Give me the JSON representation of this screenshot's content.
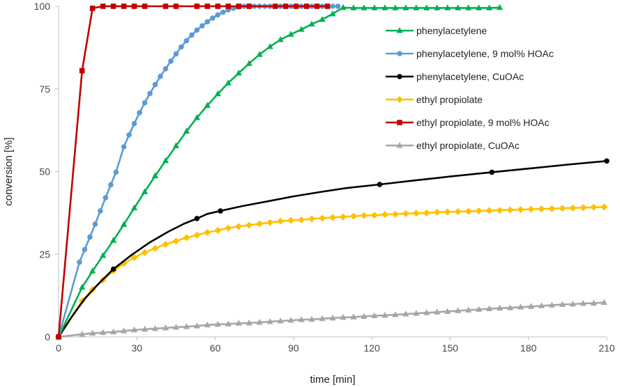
{
  "chart_data": {
    "type": "line",
    "title": "",
    "xlabel": "time [min]",
    "ylabel": "conversion [%]",
    "xlim": [
      0,
      210
    ],
    "ylim": [
      0,
      100
    ],
    "xticks": [
      0,
      30,
      60,
      90,
      120,
      150,
      180,
      210
    ],
    "yticks": [
      0,
      25,
      50,
      75,
      100
    ],
    "grid": false,
    "legend_position": "top-right",
    "series": [
      {
        "name": "phenylacetylene",
        "color": "#00B050",
        "marker": "triangle",
        "points": [
          [
            0,
            0
          ],
          [
            9,
            15
          ],
          [
            13,
            19.9
          ],
          [
            17,
            24.6
          ],
          [
            21,
            29.2
          ],
          [
            25,
            34
          ],
          [
            29,
            39
          ],
          [
            33,
            43.9
          ],
          [
            37,
            48.7
          ],
          [
            41,
            53.3
          ],
          [
            45,
            57.8
          ],
          [
            49,
            62.2
          ],
          [
            53,
            66.3
          ],
          [
            57,
            70
          ],
          [
            61,
            73.5
          ],
          [
            65,
            76.8
          ],
          [
            69,
            79.8
          ],
          [
            73,
            82.7
          ],
          [
            77,
            85.4
          ],
          [
            81,
            87.8
          ],
          [
            85,
            89.9
          ],
          [
            89,
            91.5
          ],
          [
            93,
            93
          ],
          [
            97,
            94.6
          ],
          [
            101,
            96
          ],
          [
            105,
            97.7
          ],
          [
            109,
            99.6
          ],
          [
            113,
            99.5
          ],
          [
            117,
            99.5
          ],
          [
            121,
            99.5
          ],
          [
            125,
            99.5
          ],
          [
            129,
            99.5
          ],
          [
            133,
            99.5
          ],
          [
            137,
            99.5
          ],
          [
            141,
            99.5
          ],
          [
            145,
            99.5
          ],
          [
            149,
            99.5
          ],
          [
            153,
            99.5
          ],
          [
            157,
            99.5
          ],
          [
            161,
            99.5
          ],
          [
            165,
            99.5
          ],
          [
            169,
            99.6
          ]
        ]
      },
      {
        "name": "phenylacetylene, 9 mol% HOAc",
        "color": "#5B9BD5",
        "marker": "circle",
        "points": [
          [
            0,
            0
          ],
          [
            8,
            22.6
          ],
          [
            10,
            26.4
          ],
          [
            12,
            30.2
          ],
          [
            14,
            34.1
          ],
          [
            16,
            38.1
          ],
          [
            18,
            42.1
          ],
          [
            20,
            46
          ],
          [
            22,
            49.8
          ],
          [
            25,
            57.5
          ],
          [
            27,
            61.1
          ],
          [
            29,
            64.5
          ],
          [
            31,
            67.8
          ],
          [
            33,
            70.8
          ],
          [
            35,
            73.6
          ],
          [
            37,
            76.3
          ],
          [
            39,
            78.8
          ],
          [
            41,
            81.1
          ],
          [
            43,
            83.4
          ],
          [
            45,
            85.6
          ],
          [
            47,
            87.7
          ],
          [
            49,
            89.6
          ],
          [
            51,
            91.3
          ],
          [
            53,
            92.8
          ],
          [
            55,
            94.1
          ],
          [
            57,
            95.3
          ],
          [
            59,
            96.4
          ],
          [
            61,
            97.4
          ],
          [
            63,
            98.2
          ],
          [
            65,
            98.9
          ],
          [
            67,
            99.4
          ],
          [
            69,
            99.8
          ],
          [
            71,
            100
          ],
          [
            73,
            100
          ],
          [
            75,
            100
          ],
          [
            77,
            100
          ],
          [
            79,
            100
          ],
          [
            81,
            100
          ],
          [
            83,
            100
          ],
          [
            85,
            100
          ],
          [
            87,
            100
          ],
          [
            89,
            100
          ],
          [
            91,
            100
          ],
          [
            93,
            100
          ],
          [
            95,
            100
          ],
          [
            97,
            100
          ],
          [
            99,
            100
          ],
          [
            101,
            100
          ],
          [
            103,
            100
          ],
          [
            105,
            100
          ],
          [
            107,
            100
          ]
        ]
      },
      {
        "name": "phenylacetylene, CuOAc",
        "color": "#000000",
        "marker": "circle",
        "points": [
          [
            0,
            0
          ],
          [
            21,
            20.5
          ],
          [
            53,
            35.8
          ],
          [
            62,
            38.1
          ],
          [
            123,
            46.1
          ],
          [
            166,
            49.8
          ],
          [
            210,
            53.2
          ]
        ],
        "curve": [
          [
            0,
            0
          ],
          [
            5,
            6
          ],
          [
            10,
            11.5
          ],
          [
            15,
            15.8
          ],
          [
            21,
            20.5
          ],
          [
            28,
            24.8
          ],
          [
            35,
            28.6
          ],
          [
            42,
            31.8
          ],
          [
            48,
            34.2
          ],
          [
            53,
            35.8
          ],
          [
            57,
            37.2
          ],
          [
            62,
            38.1
          ],
          [
            70,
            39.5
          ],
          [
            80,
            41
          ],
          [
            90,
            42.5
          ],
          [
            100,
            43.8
          ],
          [
            110,
            45
          ],
          [
            123,
            46.1
          ],
          [
            135,
            47.2
          ],
          [
            150,
            48.5
          ],
          [
            166,
            49.8
          ],
          [
            180,
            50.9
          ],
          [
            195,
            52.1
          ],
          [
            210,
            53.2
          ]
        ]
      },
      {
        "name": "ethyl propiolate",
        "color": "#FFC000",
        "marker": "diamond",
        "points": [
          [
            0,
            0
          ],
          [
            9,
            10.9
          ],
          [
            13,
            14.3
          ],
          [
            17,
            17.2
          ],
          [
            21,
            20
          ],
          [
            25,
            22.2
          ],
          [
            29,
            24
          ],
          [
            33,
            25.5
          ],
          [
            37,
            26.8
          ],
          [
            41,
            28
          ],
          [
            45,
            29
          ],
          [
            49,
            30
          ],
          [
            53,
            30.8
          ],
          [
            57,
            31.6
          ],
          [
            61,
            32.2
          ],
          [
            65,
            32.9
          ],
          [
            69,
            33.4
          ],
          [
            73,
            33.8
          ],
          [
            77,
            34.2
          ],
          [
            81,
            34.6
          ],
          [
            85,
            35
          ],
          [
            89,
            35.2
          ],
          [
            93,
            35.4
          ],
          [
            97,
            35.7
          ],
          [
            101,
            35.9
          ],
          [
            105,
            36.1
          ],
          [
            109,
            36.3
          ],
          [
            113,
            36.5
          ],
          [
            117,
            36.7
          ],
          [
            121,
            36.8
          ],
          [
            125,
            37
          ],
          [
            129,
            37.1
          ],
          [
            133,
            37.3
          ],
          [
            137,
            37.4
          ],
          [
            141,
            37.5
          ],
          [
            145,
            37.7
          ],
          [
            149,
            37.8
          ],
          [
            153,
            37.9
          ],
          [
            157,
            38
          ],
          [
            161,
            38.1
          ],
          [
            165,
            38.2
          ],
          [
            169,
            38.3
          ],
          [
            173,
            38.4
          ],
          [
            177,
            38.5
          ],
          [
            181,
            38.6
          ],
          [
            185,
            38.7
          ],
          [
            189,
            38.8
          ],
          [
            193,
            38.9
          ],
          [
            197,
            39
          ],
          [
            201,
            39.1
          ],
          [
            205,
            39.2
          ],
          [
            209,
            39.3
          ]
        ]
      },
      {
        "name": "ethyl propiolate, 9 mol% HOAc",
        "color": "#C00000",
        "marker": "square",
        "points": [
          [
            0,
            0
          ],
          [
            9,
            80.5
          ],
          [
            13,
            99.4
          ],
          [
            17,
            100
          ],
          [
            21,
            100
          ],
          [
            25,
            100
          ],
          [
            29,
            100
          ],
          [
            33,
            100
          ],
          [
            41,
            100
          ],
          [
            45,
            100
          ],
          [
            53,
            100
          ],
          [
            57,
            100
          ],
          [
            61,
            100
          ],
          [
            65,
            100
          ],
          [
            69,
            100
          ],
          [
            73,
            100
          ],
          [
            83,
            100
          ],
          [
            87,
            100
          ],
          [
            91,
            100
          ],
          [
            95,
            100
          ],
          [
            99,
            100
          ],
          [
            103,
            100
          ]
        ]
      },
      {
        "name": "ethyl propiolate, CuOAc",
        "color": "#A6A6A6",
        "marker": "triangle",
        "points": [
          [
            0,
            0
          ],
          [
            9,
            0.8
          ],
          [
            13,
            1.1
          ],
          [
            17,
            1.3
          ],
          [
            21,
            1.5
          ],
          [
            25,
            1.8
          ],
          [
            29,
            2.1
          ],
          [
            33,
            2.3
          ],
          [
            37,
            2.5
          ],
          [
            41,
            2.7
          ],
          [
            45,
            2.9
          ],
          [
            49,
            3.1
          ],
          [
            53,
            3.3
          ],
          [
            57,
            3.6
          ],
          [
            61,
            3.8
          ],
          [
            65,
            3.9
          ],
          [
            69,
            4.1
          ],
          [
            73,
            4.2
          ],
          [
            77,
            4.4
          ],
          [
            81,
            4.6
          ],
          [
            85,
            4.8
          ],
          [
            89,
            5
          ],
          [
            93,
            5.2
          ],
          [
            97,
            5.3
          ],
          [
            101,
            5.5
          ],
          [
            105,
            5.7
          ],
          [
            109,
            5.9
          ],
          [
            113,
            6
          ],
          [
            117,
            6.2
          ],
          [
            121,
            6.4
          ],
          [
            125,
            6.5
          ],
          [
            129,
            6.7
          ],
          [
            133,
            6.9
          ],
          [
            137,
            7.1
          ],
          [
            141,
            7.3
          ],
          [
            145,
            7.5
          ],
          [
            149,
            7.7
          ],
          [
            153,
            7.9
          ],
          [
            157,
            8.1
          ],
          [
            161,
            8.3
          ],
          [
            165,
            8.5
          ],
          [
            169,
            8.7
          ],
          [
            173,
            8.8
          ],
          [
            177,
            9
          ],
          [
            181,
            9.2
          ],
          [
            185,
            9.4
          ],
          [
            189,
            9.6
          ],
          [
            193,
            9.8
          ],
          [
            197,
            9.9
          ],
          [
            201,
            10.1
          ],
          [
            205,
            10.2
          ],
          [
            209,
            10.4
          ]
        ]
      }
    ]
  }
}
